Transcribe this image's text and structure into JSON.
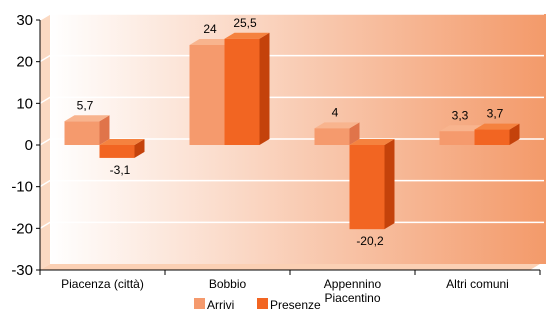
{
  "chart_data": {
    "type": "bar",
    "categories": [
      "Piacenza (città)",
      "Bobbio",
      "Appennino Piacentino",
      "Altri comuni"
    ],
    "category_lines": [
      [
        "Piacenza (città)"
      ],
      [
        "Bobbio"
      ],
      [
        "Appennino",
        "Piacentino"
      ],
      [
        "Altri comuni"
      ]
    ],
    "series": [
      {
        "name": "Arrivi",
        "values": [
          5.7,
          24,
          4,
          3.3
        ],
        "labels": [
          "5,7",
          "24",
          "4",
          "3,3"
        ],
        "color": "#f59a6d",
        "side_color": "#e0744a",
        "top_color": "#f8b48e"
      },
      {
        "name": "Presenze",
        "values": [
          -3.1,
          25.5,
          -20.2,
          3.7
        ],
        "labels": [
          "-3,1",
          "25,5",
          "-20,2",
          "3,7"
        ],
        "color": "#f26522",
        "side_color": "#c4420b",
        "top_color": "#f5823f"
      }
    ],
    "ylim": [
      -30,
      30
    ],
    "yticks": [
      30,
      20,
      10,
      0,
      -10,
      -20,
      -30
    ],
    "ytick_labels": [
      "30",
      "20",
      "10",
      "0",
      "-10",
      "-20",
      "-30"
    ],
    "grid": true,
    "legend": "bottom-center",
    "background_gradient": [
      "#ffffff",
      "#f39a6a"
    ],
    "title": "",
    "xlabel": "",
    "ylabel": ""
  }
}
